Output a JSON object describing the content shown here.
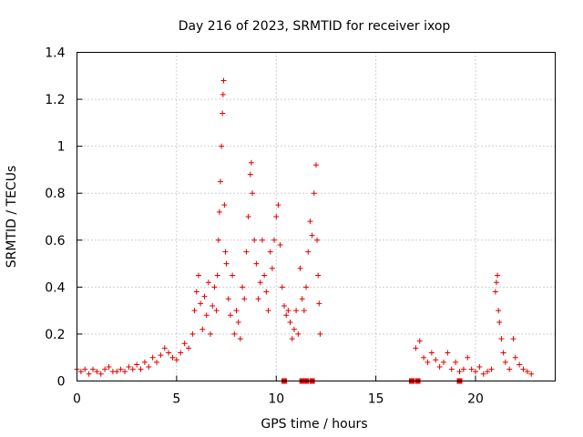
{
  "chart_data": {
    "type": "scatter",
    "title": "Day 216 of 2023, SRMTID for receiver ixop",
    "xlabel": "GPS time / hours",
    "ylabel": "SRMTID / TECUs",
    "xlim": [
      0,
      24
    ],
    "ylim": [
      0,
      1.4
    ],
    "xticks": [
      0,
      5,
      10,
      15,
      20
    ],
    "xtick_labels": [
      "0",
      "5",
      "10",
      "15",
      "20"
    ],
    "yticks": [
      0,
      0.2,
      0.4,
      0.6,
      0.8,
      1,
      1.2,
      1.4
    ],
    "ytick_labels": [
      "0",
      "0.2",
      "0.4",
      "0.6",
      "0.8",
      "1",
      "1.2",
      "1.4"
    ],
    "grid": true,
    "marker": "+",
    "color": "#e00000",
    "series": [
      {
        "name": "SRMTID",
        "points": [
          [
            0.0,
            0.05
          ],
          [
            0.2,
            0.04
          ],
          [
            0.4,
            0.05
          ],
          [
            0.6,
            0.03
          ],
          [
            0.8,
            0.05
          ],
          [
            1.0,
            0.04
          ],
          [
            1.2,
            0.03
          ],
          [
            1.4,
            0.05
          ],
          [
            1.6,
            0.06
          ],
          [
            1.8,
            0.04
          ],
          [
            2.0,
            0.04
          ],
          [
            2.2,
            0.05
          ],
          [
            2.4,
            0.04
          ],
          [
            2.6,
            0.06
          ],
          [
            2.8,
            0.05
          ],
          [
            3.0,
            0.07
          ],
          [
            3.2,
            0.05
          ],
          [
            3.4,
            0.08
          ],
          [
            3.6,
            0.06
          ],
          [
            3.8,
            0.1
          ],
          [
            4.0,
            0.08
          ],
          [
            4.2,
            0.11
          ],
          [
            4.4,
            0.14
          ],
          [
            4.6,
            0.12
          ],
          [
            4.8,
            0.1
          ],
          [
            5.0,
            0.09
          ],
          [
            5.2,
            0.12
          ],
          [
            5.4,
            0.16
          ],
          [
            5.6,
            0.14
          ],
          [
            5.8,
            0.2
          ],
          [
            5.9,
            0.3
          ],
          [
            6.0,
            0.38
          ],
          [
            6.1,
            0.45
          ],
          [
            6.2,
            0.33
          ],
          [
            6.3,
            0.22
          ],
          [
            6.4,
            0.36
          ],
          [
            6.5,
            0.28
          ],
          [
            6.6,
            0.42
          ],
          [
            6.7,
            0.2
          ],
          [
            6.8,
            0.32
          ],
          [
            6.9,
            0.4
          ],
          [
            7.0,
            0.3
          ],
          [
            7.05,
            0.45
          ],
          [
            7.1,
            0.6
          ],
          [
            7.15,
            0.72
          ],
          [
            7.2,
            0.85
          ],
          [
            7.25,
            1.0
          ],
          [
            7.3,
            1.14
          ],
          [
            7.33,
            1.22
          ],
          [
            7.36,
            1.28
          ],
          [
            7.4,
            0.75
          ],
          [
            7.45,
            0.55
          ],
          [
            7.5,
            0.5
          ],
          [
            7.6,
            0.35
          ],
          [
            7.7,
            0.28
          ],
          [
            7.8,
            0.45
          ],
          [
            7.9,
            0.2
          ],
          [
            8.0,
            0.3
          ],
          [
            8.1,
            0.25
          ],
          [
            8.2,
            0.18
          ],
          [
            8.3,
            0.4
          ],
          [
            8.4,
            0.35
          ],
          [
            8.5,
            0.55
          ],
          [
            8.6,
            0.7
          ],
          [
            8.7,
            0.88
          ],
          [
            8.75,
            0.93
          ],
          [
            8.8,
            0.8
          ],
          [
            8.9,
            0.6
          ],
          [
            9.0,
            0.5
          ],
          [
            9.1,
            0.35
          ],
          [
            9.2,
            0.42
          ],
          [
            9.3,
            0.6
          ],
          [
            9.4,
            0.45
          ],
          [
            9.5,
            0.38
          ],
          [
            9.6,
            0.3
          ],
          [
            9.7,
            0.55
          ],
          [
            9.8,
            0.48
          ],
          [
            9.9,
            0.6
          ],
          [
            10.0,
            0.7
          ],
          [
            10.1,
            0.75
          ],
          [
            10.2,
            0.58
          ],
          [
            10.3,
            0.4
          ],
          [
            10.4,
            0.32
          ],
          [
            10.5,
            0.28
          ],
          [
            10.6,
            0.3
          ],
          [
            10.7,
            0.25
          ],
          [
            10.8,
            0.18
          ],
          [
            10.9,
            0.22
          ],
          [
            11.0,
            0.3
          ],
          [
            11.1,
            0.2
          ],
          [
            11.2,
            0.48
          ],
          [
            11.3,
            0.35
          ],
          [
            11.4,
            0.3
          ],
          [
            11.5,
            0.4
          ],
          [
            11.6,
            0.55
          ],
          [
            11.7,
            0.68
          ],
          [
            11.8,
            0.62
          ],
          [
            11.9,
            0.8
          ],
          [
            12.0,
            0.92
          ],
          [
            12.05,
            0.6
          ],
          [
            12.1,
            0.45
          ],
          [
            12.15,
            0.33
          ],
          [
            12.2,
            0.2
          ],
          [
            17.0,
            0.14
          ],
          [
            17.2,
            0.17
          ],
          [
            17.4,
            0.1
          ],
          [
            17.6,
            0.08
          ],
          [
            17.8,
            0.12
          ],
          [
            18.0,
            0.09
          ],
          [
            18.2,
            0.06
          ],
          [
            18.4,
            0.08
          ],
          [
            18.6,
            0.12
          ],
          [
            18.8,
            0.05
          ],
          [
            19.0,
            0.08
          ],
          [
            19.2,
            0.04
          ],
          [
            19.4,
            0.05
          ],
          [
            19.6,
            0.1
          ],
          [
            19.8,
            0.05
          ],
          [
            20.0,
            0.04
          ],
          [
            20.2,
            0.06
          ],
          [
            20.4,
            0.03
          ],
          [
            20.6,
            0.04
          ],
          [
            20.8,
            0.05
          ],
          [
            21.0,
            0.38
          ],
          [
            21.05,
            0.42
          ],
          [
            21.1,
            0.45
          ],
          [
            21.15,
            0.3
          ],
          [
            21.2,
            0.25
          ],
          [
            21.3,
            0.18
          ],
          [
            21.4,
            0.12
          ],
          [
            21.5,
            0.08
          ],
          [
            21.7,
            0.05
          ],
          [
            21.9,
            0.18
          ],
          [
            22.0,
            0.1
          ],
          [
            22.2,
            0.07
          ],
          [
            22.4,
            0.05
          ],
          [
            22.6,
            0.04
          ],
          [
            22.8,
            0.03
          ]
        ]
      },
      {
        "name": "SRMTID (square markers)",
        "marker": "square",
        "points": [
          [
            10.4,
            0.0
          ],
          [
            11.3,
            0.0
          ],
          [
            11.5,
            0.0
          ],
          [
            11.8,
            0.0
          ],
          [
            16.8,
            0.0
          ],
          [
            17.1,
            0.0
          ],
          [
            19.2,
            0.0
          ]
        ]
      }
    ]
  }
}
